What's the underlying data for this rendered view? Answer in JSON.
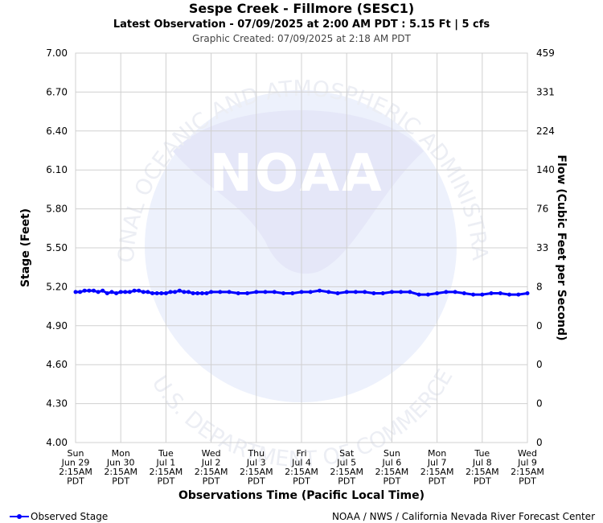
{
  "header": {
    "title": "Sespe Creek - Fillmore (SESC1)",
    "subtitle": "Latest Observation - 07/09/2025 at 2:00 AM PDT : 5.15 Ft | 5 cfs",
    "created": "Graphic Created: 07/09/2025 at 2:18 AM PDT"
  },
  "watermark": {
    "logo_text": "NOAA",
    "ring_top": "NATIONAL OCEANIC AND ATMOSPHERIC ADMINISTRATION",
    "ring_bottom": "U.S. DEPARTMENT OF COMMERCE"
  },
  "legend": {
    "label": "Observed Stage"
  },
  "footer": {
    "credit": "NOAA / NWS / California Nevada River Forecast Center"
  },
  "colors": {
    "series": "#0000ff",
    "grid": "#d0d0d0",
    "watermark": "#e8ecfb"
  },
  "chart_data": {
    "type": "line",
    "ylabel": "Stage (Feet)",
    "y2label": "Flow (Cubic Feet per Second)",
    "xlabel": "Observations Time (Pacific Local Time)",
    "ylim": [
      4.0,
      7.0
    ],
    "yticks": [
      "7.00",
      "6.70",
      "6.40",
      "6.10",
      "5.80",
      "5.50",
      "5.20",
      "4.90",
      "4.60",
      "4.30",
      "4.00"
    ],
    "y2ticks": [
      "459",
      "331",
      "224",
      "140",
      "76",
      "33",
      "8",
      "0",
      "0",
      "0",
      "0"
    ],
    "grid": true,
    "legend_position": "bottom-left",
    "x_categories": [
      [
        "Sun",
        "Jun 29",
        "2:15AM",
        "PDT"
      ],
      [
        "Mon",
        "Jun 30",
        "2:15AM",
        "PDT"
      ],
      [
        "Tue",
        "Jul 1",
        "2:15AM",
        "PDT"
      ],
      [
        "Wed",
        "Jul 2",
        "2:15AM",
        "PDT"
      ],
      [
        "Thu",
        "Jul 3",
        "2:15AM",
        "PDT"
      ],
      [
        "Fri",
        "Jul 4",
        "2:15AM",
        "PDT"
      ],
      [
        "Sat",
        "Jul 5",
        "2:15AM",
        "PDT"
      ],
      [
        "Sun",
        "Jul 6",
        "2:15AM",
        "PDT"
      ],
      [
        "Mon",
        "Jul 7",
        "2:15AM",
        "PDT"
      ],
      [
        "Tue",
        "Jul 8",
        "2:15AM",
        "PDT"
      ],
      [
        "Wed",
        "Jul 9",
        "2:15AM",
        "PDT"
      ]
    ],
    "series": [
      {
        "name": "Observed Stage",
        "x": [
          0,
          0.1,
          0.2,
          0.3,
          0.4,
          0.5,
          0.6,
          0.7,
          0.8,
          0.9,
          1.0,
          1.1,
          1.2,
          1.3,
          1.4,
          1.5,
          1.6,
          1.7,
          1.8,
          1.9,
          2.0,
          2.1,
          2.2,
          2.3,
          2.4,
          2.5,
          2.6,
          2.7,
          2.8,
          2.9,
          3.0,
          3.2,
          3.4,
          3.6,
          3.8,
          4.0,
          4.2,
          4.4,
          4.6,
          4.8,
          5.0,
          5.2,
          5.4,
          5.6,
          5.8,
          6.0,
          6.2,
          6.4,
          6.6,
          6.8,
          7.0,
          7.2,
          7.4,
          7.6,
          7.8,
          8.0,
          8.2,
          8.4,
          8.6,
          8.8,
          9.0,
          9.2,
          9.4,
          9.6,
          9.8,
          10.0
        ],
        "values": [
          5.16,
          5.16,
          5.17,
          5.17,
          5.17,
          5.16,
          5.17,
          5.15,
          5.16,
          5.15,
          5.16,
          5.16,
          5.16,
          5.17,
          5.17,
          5.16,
          5.16,
          5.15,
          5.15,
          5.15,
          5.15,
          5.16,
          5.16,
          5.17,
          5.16,
          5.16,
          5.15,
          5.15,
          5.15,
          5.15,
          5.16,
          5.16,
          5.16,
          5.15,
          5.15,
          5.16,
          5.16,
          5.16,
          5.15,
          5.15,
          5.16,
          5.16,
          5.17,
          5.16,
          5.15,
          5.16,
          5.16,
          5.16,
          5.15,
          5.15,
          5.16,
          5.16,
          5.16,
          5.14,
          5.14,
          5.15,
          5.16,
          5.16,
          5.15,
          5.14,
          5.14,
          5.15,
          5.15,
          5.14,
          5.14,
          5.15
        ]
      }
    ]
  }
}
